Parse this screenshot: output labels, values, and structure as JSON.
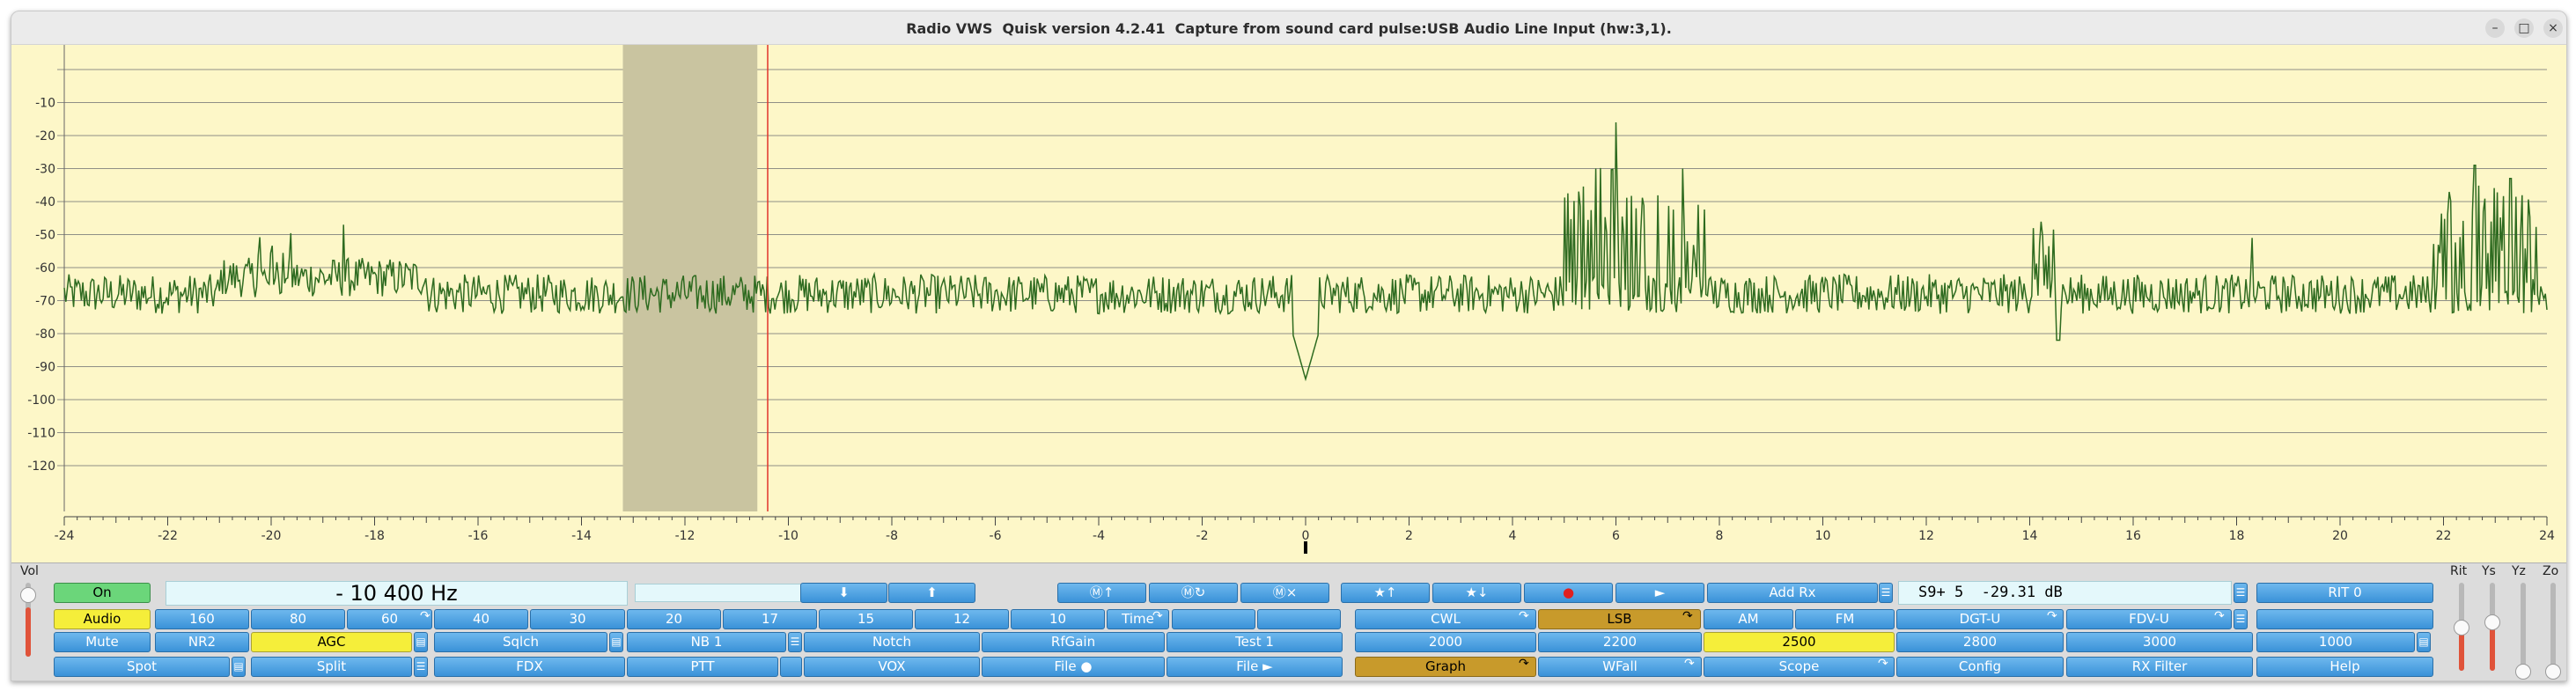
{
  "window": {
    "title": "Radio VWS  Quisk version 4.2.41  Capture from sound card pulse:USB Audio Line Input (hw:3,1).",
    "minimize": "–",
    "maximize": "□",
    "close": "×"
  },
  "graph": {
    "background": "#fdf7c8",
    "trace_color": "#2e6b20",
    "yticks": [
      "-10",
      "-20",
      "-30",
      "-40",
      "-50",
      "-60",
      "-70",
      "-80",
      "-90",
      "-100",
      "-110",
      "-120"
    ],
    "xticks": [
      "-24",
      "-22",
      "-20",
      "-18",
      "-16",
      "-14",
      "-12",
      "-10",
      "-8",
      "-6",
      "-4",
      "-2",
      "0",
      "2",
      "4",
      "6",
      "8",
      "10",
      "12",
      "14",
      "16",
      "18",
      "20",
      "22",
      "24"
    ],
    "xunit": "kHz",
    "filter_band_khz": [
      -13.2,
      -10.6
    ],
    "tuning_line_khz": -10.4
  },
  "labels": {
    "vol": "Vol",
    "rit": "Rit",
    "ys": "Ys",
    "yz": "Yz",
    "zo": "Zo"
  },
  "displays": {
    "frequency": "- 10 400 Hz",
    "smeter": "S9+ 5  -29.31 dB"
  },
  "buttons": {
    "on": "On",
    "audio": "Audio",
    "mute": "Mute",
    "nr2": "NR2",
    "agc": "AGC",
    "squelch": "Sqlch",
    "nb": "NB 1",
    "spot": "Spot",
    "split": "Split",
    "fdx": "FDX",
    "ptt": "PTT",
    "vox": "VOX",
    "notch": "Notch",
    "rfgain": "RfGain",
    "test1": "Test 1",
    "file1": "File ●",
    "file2": "File ►",
    "time": "Time",
    "mem_down": "⬇",
    "mem_up": "⬆",
    "m_up": "Ⓜ↑",
    "m_recall": "Ⓜ↻",
    "m_del": "Ⓜ×",
    "fav_up": "★↑",
    "fav_down": "★↓",
    "record": "●",
    "play": "►",
    "addrx": "Add Rx",
    "rit0": "RIT 0",
    "cwl": "CWL",
    "lsb": "LSB",
    "am": "AM",
    "fm": "FM",
    "dgtu": "DGT-U",
    "fdvu": "FDV-U",
    "graph": "Graph",
    "wfall": "WFall",
    "scope": "Scope",
    "config": "Config",
    "rxfilter": "RX Filter",
    "help": "Help"
  },
  "bands": [
    "160",
    "80",
    "60",
    "40",
    "30",
    "20",
    "17",
    "15",
    "12",
    "10"
  ],
  "filters": [
    "2000",
    "2200",
    "2500",
    "2800",
    "3000",
    "1000"
  ],
  "colors": {
    "button": "#4aa3e6",
    "yellow": "#f5ee3a",
    "orange": "#c89a2b",
    "green": "#6bd67a",
    "display": "#e4f8fb"
  }
}
